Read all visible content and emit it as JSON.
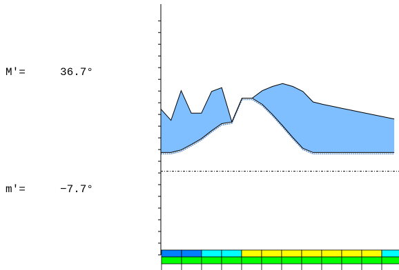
{
  "readouts": {
    "max_label": "M′=",
    "max_value": "36.7°",
    "min_label": "m′=",
    "min_value": "−7.7°"
  },
  "colors": {
    "band_fill": "#80bfff",
    "band_alert_fill": "#ff0000",
    "band_edge": "#000000",
    "band_shadow": "#5a8fd0",
    "dotted_line": "#000000",
    "strip_colors": [
      "#0080ff",
      "#00ffff",
      "#ffff00",
      "#00ff00"
    ]
  },
  "chart_data": {
    "type": "area",
    "title": "",
    "xlabel": "",
    "ylabel": "",
    "ylim": [
      -12.0,
      48.0
    ],
    "y_ticks": [
      -12,
      -9.2,
      -6.4,
      -3.6,
      -0.8,
      2.0,
      4.8,
      7.6,
      10.4,
      13.2,
      16.0,
      18.8,
      21.6,
      24.4,
      27.2,
      30.0,
      32.8,
      35.6,
      38.4,
      41.2,
      44.0
    ],
    "x": [
      0,
      1,
      2,
      3,
      4,
      5,
      6,
      7,
      8,
      9,
      10,
      11,
      12,
      13,
      14,
      15,
      16,
      17,
      18,
      19,
      20,
      21,
      22,
      23
    ],
    "series": [
      {
        "values_upper": [
          22.9,
          20.2,
          27.3,
          21.9,
          21.9,
          27.1,
          28.0,
          19.8,
          25.5,
          25.5,
          27.3,
          28.3,
          29.0,
          28.3,
          27.1,
          24.6,
          24.0,
          23.5,
          23.0,
          22.5,
          22.0,
          21.5,
          21.0,
          20.5
        ],
        "values_lower": [
          12.5,
          12.5,
          13.1,
          14.4,
          15.8,
          17.7,
          19.4,
          19.8,
          25.5,
          25.5,
          24.0,
          21.6,
          18.9,
          16.1,
          13.5,
          12.5,
          12.5,
          12.5,
          12.5,
          12.5,
          12.5,
          12.5,
          12.5,
          12.5
        ],
        "alert_segment": [
          7,
          9
        ]
      }
    ],
    "reference_line": {
      "style": "dash-dot",
      "y": 8.0
    },
    "status_strip": {
      "row1": [
        "#0080ff",
        "#0080ff",
        "#00ffff",
        "#00ffff",
        "#ffff00",
        "#ffff00",
        "#ffff00",
        "#ffff00",
        "#ffff00",
        "#ffff00",
        "#ffff00",
        "#00ffff",
        "#0080ff",
        "#0080ff"
      ],
      "row2": [
        "#00ff00",
        "#00ff00",
        "#00ff00",
        "#00ff00",
        "#00ff00",
        "#00ff00",
        "#00ff00",
        "#00ff00",
        "#00ff00",
        "#00ff00",
        "#00ff00",
        "#00ff00",
        "#00ff00",
        "#00ff00"
      ]
    },
    "grid": false,
    "legend": "none"
  }
}
